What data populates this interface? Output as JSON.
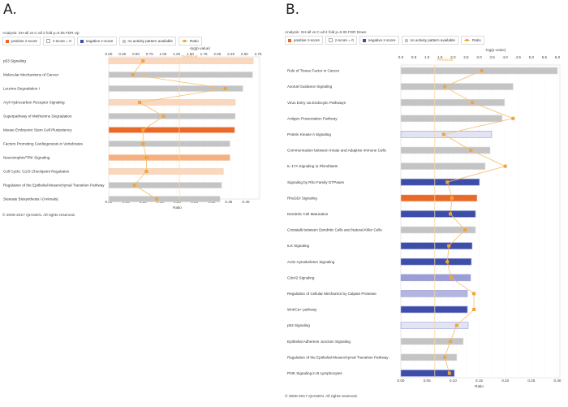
{
  "panels": [
    {
      "letter": "A.",
      "analysis": "Analysis: SH-all vs C-all 2 fold p=0.05 FDR Up",
      "copyright": "© 2000-2017 QIAGEN. All rights reserved."
    },
    {
      "letter": "B.",
      "analysis": "Analysis: SH-all vs C-all 2 fold p=0.05 FDR Down",
      "copyright": "© 2000-2017 QIAGEN. All rights reserved."
    }
  ],
  "legend": [
    {
      "label": "positive z-score",
      "color": "#e8692a",
      "kind": "box"
    },
    {
      "label": "z-score = 0",
      "color": "#ffffff",
      "kind": "box"
    },
    {
      "label": "negative z-score",
      "color": "#3c4ea8",
      "kind": "box"
    },
    {
      "label": "no activity pattern available",
      "color": "#c4c4c4",
      "kind": "box"
    },
    {
      "label": "Ratio",
      "color": "#f2a43a",
      "kind": "line"
    }
  ],
  "colors": {
    "positive_strong": "#e8692a",
    "positive_medium": "#f5b07e",
    "positive_light": "#fad8c0",
    "negative_strong": "#3c4ea8",
    "negative_medium": "#9a9ed4",
    "negative_light": "#b4b6e0",
    "negative_faint": "#e2e3f3",
    "none": "#c4c4c4",
    "ratio": "#f2a43a",
    "threshold": "#f7d7a0"
  },
  "chart_data": [
    {
      "type": "bar",
      "title": "Analysis: SH-all vs C-all 2 fold p=0.05 FDR Up",
      "orientation": "horizontal",
      "top_axis_label": "-log(p-value)",
      "bottom_axis_label": "Ratio",
      "top_ticks": [
        "0.00",
        "0.25",
        "0.50",
        "0.75",
        "1.00",
        "1.25",
        "1.50",
        "1.75",
        "2.00",
        "2.25",
        "2.50",
        "2.75"
      ],
      "bottom_ticks": [
        "0.00",
        "0.05",
        "0.10",
        "0.15",
        "0.20",
        "0.25",
        "0.30",
        "0.35",
        "0.40"
      ],
      "xlim_top": [
        0,
        2.75
      ],
      "xlim_bottom": [
        0,
        0.4
      ],
      "threshold": 1.3,
      "threshold_label": "Threshold",
      "grid": true,
      "legend_position": "top-left",
      "categories": [
        "p53 Signaling",
        "Molecular Mechanisms of Cancer",
        "Leucine Degradation I",
        "Aryl Hydrocarbon Receptor Signaling",
        "Superpathway of Methionine Degradation",
        "Mouse Embryonic Stem Cell Pluripotency",
        "Factors Promoting Cardiogenesis in Vertebrates",
        "Neurotrophin/TRK Signaling",
        "Cell Cycle: G1/S Checkpoint Regulation",
        "Regulation of the Epithelial-Mesenchymal Transition Pathway",
        "Stearate Biosynthesis I (Animals)"
      ],
      "series": [
        {
          "name": "-log(p-value)",
          "values": [
            2.66,
            2.65,
            2.47,
            2.33,
            2.33,
            2.32,
            2.23,
            2.23,
            2.11,
            2.08,
            2.05
          ]
        },
        {
          "name": "Ratio",
          "values": [
            0.1,
            0.07,
            0.34,
            0.09,
            0.16,
            0.1,
            0.1,
            0.11,
            0.11,
            0.075,
            0.14
          ]
        }
      ],
      "bar_colors": [
        "positive_light",
        "none",
        "none",
        "positive_light",
        "none",
        "positive_strong",
        "none",
        "positive_medium",
        "positive_light",
        "none",
        "none"
      ]
    },
    {
      "type": "bar",
      "title": "Analysis: SH-all vs C-all 2 fold p=0.05 FDR Down",
      "orientation": "horizontal",
      "top_axis_label": "-log(p-value)",
      "bottom_axis_label": "Ratio",
      "top_ticks": [
        "0.0",
        "0.5",
        "1.0",
        "1.5",
        "2.0",
        "2.5",
        "3.0",
        "3.5",
        "4.0",
        "4.5",
        "5.0",
        "5.5",
        "6.0"
      ],
      "bottom_ticks": [
        "0.00",
        "0.05",
        "0.10",
        "0.15",
        "0.20",
        "0.25",
        "0.30"
      ],
      "xlim_top": [
        0,
        6.0
      ],
      "xlim_bottom": [
        0,
        0.3
      ],
      "threshold": 1.3,
      "threshold_label": "Threshold",
      "grid": true,
      "legend_position": "top-left",
      "categories": [
        "Role of Tissue Factor in Cancer",
        "Axonal Guidance Signaling",
        "Virus Entry via Endocytic Pathways",
        "Antigen Presentation Pathway",
        "Protein Kinase A Signaling",
        "Communication between Innate and Adaptive Immune Cells",
        "IL-17A Signaling in Fibroblasts",
        "Signaling by Rho Family GTPases",
        "RhoGDI Signaling",
        "Dendritic Cell Maturation",
        "Crosstalk between Dendritic Cells and Natural Killer Cells",
        "ILK Signaling",
        "Actin Cytoskeleton Signaling",
        "Cdc42 Signaling",
        "Regulation of Cellular Mechanics by Calpain Protease",
        "Wnt/Ca+ pathway",
        "p53 Signaling",
        "Epithelial Adherens Junction Signaling",
        "Regulation of the Epithelial-Mesenchymal Transition Pathway",
        "PI3K Signaling in B Lymphocytes"
      ],
      "series": [
        {
          "name": "-log(p-value)",
          "values": [
            6.0,
            4.3,
            3.97,
            3.88,
            3.48,
            3.42,
            3.23,
            3.01,
            2.92,
            2.86,
            2.86,
            2.73,
            2.7,
            2.67,
            2.55,
            2.55,
            2.58,
            2.39,
            2.14,
            2.05
          ]
        },
        {
          "name": "Ratio",
          "values": [
            0.155,
            0.084,
            0.137,
            0.215,
            0.082,
            0.134,
            0.2,
            0.089,
            0.098,
            0.095,
            0.123,
            0.092,
            0.089,
            0.096,
            0.14,
            0.14,
            0.107,
            0.095,
            0.084,
            0.093
          ]
        }
      ],
      "bar_colors": [
        "none",
        "none",
        "none",
        "none",
        "negative_faint",
        "none",
        "none",
        "negative_strong",
        "positive_strong",
        "negative_strong",
        "none",
        "negative_strong",
        "negative_strong",
        "negative_medium",
        "negative_light",
        "negative_strong",
        "negative_faint",
        "none",
        "none",
        "negative_strong"
      ]
    }
  ]
}
